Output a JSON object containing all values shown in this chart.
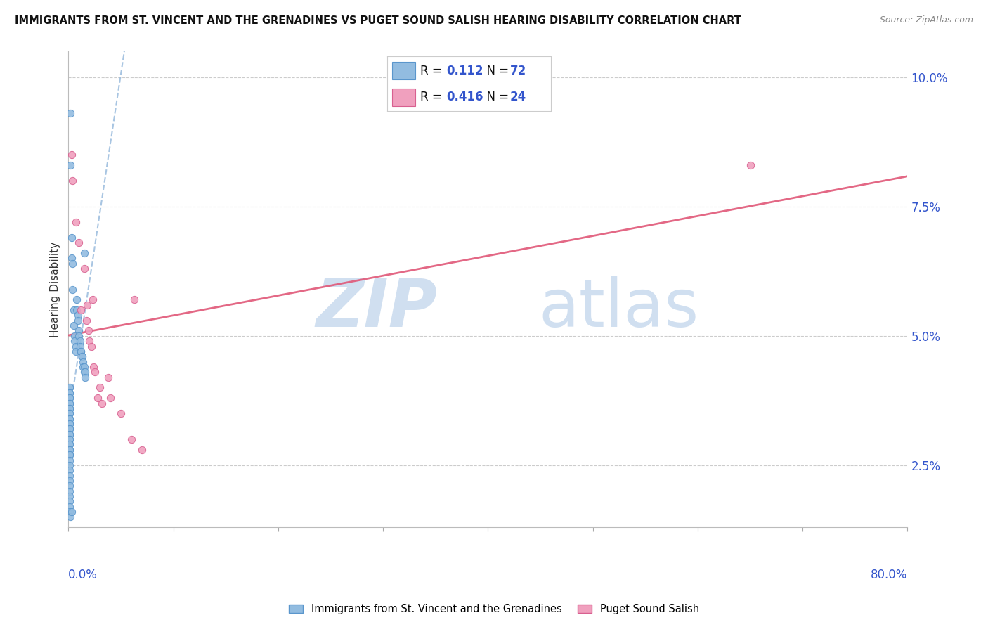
{
  "title": "IMMIGRANTS FROM ST. VINCENT AND THE GRENADINES VS PUGET SOUND SALISH HEARING DISABILITY CORRELATION CHART",
  "source": "Source: ZipAtlas.com",
  "ylabel": "Hearing Disability",
  "ytick_vals": [
    0.025,
    0.05,
    0.075,
    0.1
  ],
  "ytick_labels": [
    "2.5%",
    "5.0%",
    "7.5%",
    "10.0%"
  ],
  "xmin": 0.0,
  "xmax": 0.8,
  "ymin": 0.013,
  "ymax": 0.105,
  "R_blue": "0.112",
  "N_blue": "72",
  "R_pink": "0.416",
  "N_pink": "24",
  "blue_dot_color": "#92bce0",
  "blue_dot_edge": "#5a96cc",
  "pink_dot_color": "#f0a0be",
  "pink_dot_edge": "#d86090",
  "blue_line_color": "#99bbdd",
  "pink_line_color": "#e05878",
  "legend_label_blue": "Immigrants from St. Vincent and the Grenadines",
  "legend_label_pink": "Puget Sound Salish",
  "watermark_zip_color": "#d0dff0",
  "watermark_atlas_color": "#d0dff0",
  "blue_points": [
    [
      0.002,
      0.093
    ],
    [
      0.002,
      0.083
    ],
    [
      0.003,
      0.069
    ],
    [
      0.003,
      0.065
    ],
    [
      0.004,
      0.064
    ],
    [
      0.004,
      0.059
    ],
    [
      0.005,
      0.055
    ],
    [
      0.005,
      0.052
    ],
    [
      0.006,
      0.05
    ],
    [
      0.006,
      0.049
    ],
    [
      0.007,
      0.048
    ],
    [
      0.007,
      0.047
    ],
    [
      0.008,
      0.057
    ],
    [
      0.008,
      0.055
    ],
    [
      0.009,
      0.054
    ],
    [
      0.009,
      0.053
    ],
    [
      0.01,
      0.051
    ],
    [
      0.01,
      0.05
    ],
    [
      0.011,
      0.049
    ],
    [
      0.011,
      0.048
    ],
    [
      0.012,
      0.047
    ],
    [
      0.012,
      0.047
    ],
    [
      0.013,
      0.046
    ],
    [
      0.013,
      0.046
    ],
    [
      0.014,
      0.045
    ],
    [
      0.014,
      0.044
    ],
    [
      0.015,
      0.044
    ],
    [
      0.015,
      0.043
    ],
    [
      0.016,
      0.043
    ],
    [
      0.016,
      0.042
    ],
    [
      0.001,
      0.04
    ],
    [
      0.001,
      0.04
    ],
    [
      0.001,
      0.039
    ],
    [
      0.001,
      0.039
    ],
    [
      0.001,
      0.038
    ],
    [
      0.001,
      0.038
    ],
    [
      0.001,
      0.037
    ],
    [
      0.001,
      0.037
    ],
    [
      0.001,
      0.036
    ],
    [
      0.001,
      0.036
    ],
    [
      0.001,
      0.035
    ],
    [
      0.001,
      0.035
    ],
    [
      0.001,
      0.034
    ],
    [
      0.001,
      0.034
    ],
    [
      0.001,
      0.033
    ],
    [
      0.001,
      0.033
    ],
    [
      0.001,
      0.032
    ],
    [
      0.001,
      0.032
    ],
    [
      0.001,
      0.031
    ],
    [
      0.001,
      0.031
    ],
    [
      0.001,
      0.03
    ],
    [
      0.001,
      0.03
    ],
    [
      0.001,
      0.029
    ],
    [
      0.001,
      0.029
    ],
    [
      0.001,
      0.028
    ],
    [
      0.001,
      0.028
    ],
    [
      0.001,
      0.027
    ],
    [
      0.001,
      0.027
    ],
    [
      0.001,
      0.026
    ],
    [
      0.001,
      0.025
    ],
    [
      0.001,
      0.024
    ],
    [
      0.001,
      0.023
    ],
    [
      0.001,
      0.022
    ],
    [
      0.001,
      0.021
    ],
    [
      0.001,
      0.02
    ],
    [
      0.001,
      0.019
    ],
    [
      0.001,
      0.018
    ],
    [
      0.001,
      0.017
    ],
    [
      0.001,
      0.016
    ],
    [
      0.002,
      0.015
    ],
    [
      0.003,
      0.016
    ],
    [
      0.015,
      0.066
    ]
  ],
  "pink_points": [
    [
      0.003,
      0.085
    ],
    [
      0.004,
      0.08
    ],
    [
      0.007,
      0.072
    ],
    [
      0.01,
      0.068
    ],
    [
      0.012,
      0.055
    ],
    [
      0.015,
      0.063
    ],
    [
      0.017,
      0.053
    ],
    [
      0.018,
      0.056
    ],
    [
      0.019,
      0.051
    ],
    [
      0.02,
      0.049
    ],
    [
      0.022,
      0.048
    ],
    [
      0.023,
      0.057
    ],
    [
      0.024,
      0.044
    ],
    [
      0.025,
      0.043
    ],
    [
      0.028,
      0.038
    ],
    [
      0.03,
      0.04
    ],
    [
      0.032,
      0.037
    ],
    [
      0.038,
      0.042
    ],
    [
      0.04,
      0.038
    ],
    [
      0.05,
      0.035
    ],
    [
      0.06,
      0.03
    ],
    [
      0.063,
      0.057
    ],
    [
      0.65,
      0.083
    ],
    [
      0.07,
      0.028
    ]
  ]
}
